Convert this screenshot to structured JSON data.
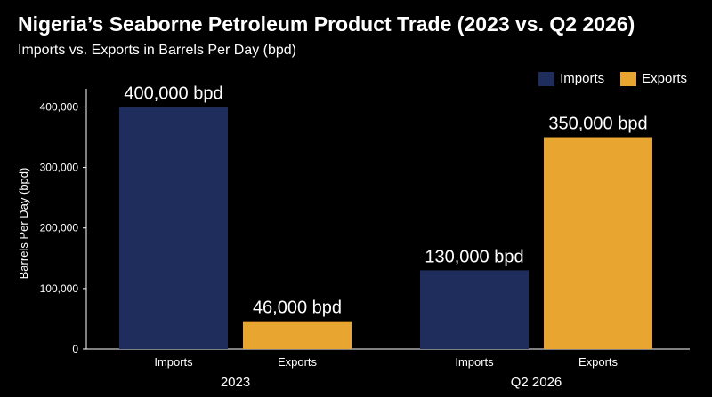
{
  "chart_data": {
    "type": "bar",
    "title": "Nigeria’s Seaborne Petroleum Product Trade (2023 vs. Q2 2026)",
    "subtitle": "Imports vs. Exports in Barrels Per Day (bpd)",
    "ylabel": "Barrels Per Day (bpd)",
    "xlabel": "",
    "ylim": [
      0,
      430000
    ],
    "yticks": [
      0,
      100000,
      200000,
      300000,
      400000
    ],
    "ytick_labels": [
      "0",
      "100,000",
      "200,000",
      "300,000",
      "400,000"
    ],
    "grid": false,
    "legend_position": "top-right",
    "groups": [
      {
        "label": "2023",
        "bars": [
          {
            "series": "Imports",
            "category": "Imports",
            "value": 400000,
            "data_label": "400,000 bpd"
          },
          {
            "series": "Exports",
            "category": "Exports",
            "value": 46000,
            "data_label": "46,000 bpd"
          }
        ]
      },
      {
        "label": "Q2 2026",
        "bars": [
          {
            "series": "Imports",
            "category": "Imports",
            "value": 130000,
            "data_label": "130,000 bpd"
          },
          {
            "series": "Exports",
            "category": "Exports",
            "value": 350000,
            "data_label": "350,000 bpd"
          }
        ]
      }
    ],
    "series": [
      {
        "name": "Imports",
        "color": "#1f2d5c"
      },
      {
        "name": "Exports",
        "color": "#e8a530"
      }
    ]
  }
}
